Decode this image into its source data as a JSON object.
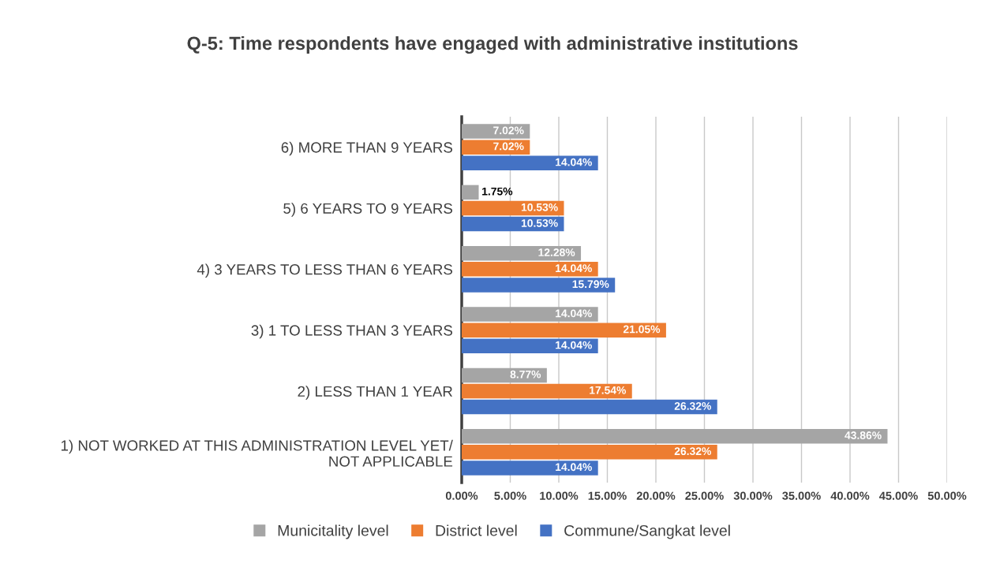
{
  "chart_data": {
    "type": "bar",
    "orientation": "horizontal",
    "title": "Q-5: Time respondents have engaged with administrative institutions",
    "categories": [
      "6) MORE THAN 9 YEARS",
      "5) 6 YEARS TO 9 YEARS",
      "4) 3 YEARS TO LESS THAN 6 YEARS",
      "3) 1 TO LESS THAN 3 YEARS",
      "2) LESS THAN 1 YEAR",
      "1) NOT WORKED AT THIS ADMINISTRATION LEVEL YET/\nNOT APPLICABLE"
    ],
    "series": [
      {
        "name": "Municitality level",
        "color": "#a5a5a5",
        "values": [
          7.02,
          1.75,
          12.28,
          14.04,
          8.77,
          43.86
        ],
        "value_labels": [
          "7.02%",
          "1.75%",
          "12.28%",
          "14.04%",
          "8.77%",
          "43.86%"
        ]
      },
      {
        "name": "District level",
        "color": "#ed7d31",
        "values": [
          7.02,
          10.53,
          14.04,
          21.05,
          17.54,
          26.32
        ],
        "value_labels": [
          "7.02%",
          "10.53%",
          "14.04%",
          "21.05%",
          "17.54%",
          "26.32%"
        ]
      },
      {
        "name": "Commune/Sangkat level",
        "color": "#4472c4",
        "values": [
          14.04,
          10.53,
          15.79,
          14.04,
          26.32,
          14.04
        ],
        "value_labels": [
          "14.04%",
          "10.53%",
          "15.79%",
          "14.04%",
          "26.32%",
          "14.04%"
        ]
      }
    ],
    "xlim": [
      0,
      50
    ],
    "xticks": [
      {
        "value": 0,
        "label": "0.00%"
      },
      {
        "value": 5,
        "label": "5.00%"
      },
      {
        "value": 10,
        "label": "10.00%"
      },
      {
        "value": 15,
        "label": "15.00%"
      },
      {
        "value": 20,
        "label": "20.00%"
      },
      {
        "value": 25,
        "label": "25.00%"
      },
      {
        "value": 30,
        "label": "30.00%"
      },
      {
        "value": 35,
        "label": "35.00%"
      },
      {
        "value": 40,
        "label": "40.00%"
      },
      {
        "value": 45,
        "label": "45.00%"
      },
      {
        "value": 50,
        "label": "50.00%"
      }
    ],
    "grid": "x",
    "legend": "bottom"
  }
}
